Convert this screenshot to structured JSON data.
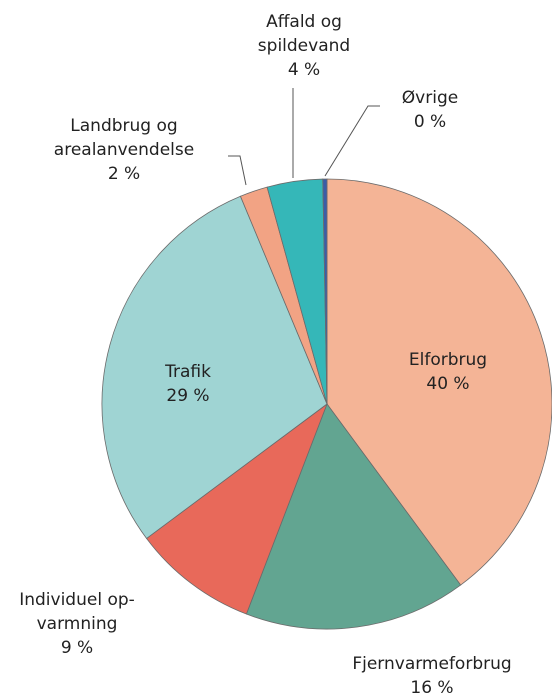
{
  "chart_data": {
    "type": "pie",
    "categories": [
      [
        "Elforbrug"
      ],
      [
        "Fjernvarmeforbrug"
      ],
      [
        "Individuel op-",
        "varmning"
      ],
      [
        "Trafik"
      ],
      [
        "Landbrug og",
        "arealanvendelse"
      ],
      [
        "Affald og",
        "spildevand"
      ],
      [
        "Øvrige"
      ]
    ],
    "values": [
      40,
      16,
      9,
      29,
      2,
      4,
      0.3
    ],
    "value_labels": [
      "40 %",
      "16 %",
      "9 %",
      "29 %",
      "2 %",
      "4 %",
      "0 %"
    ],
    "colors": [
      "#f4b496",
      "#62a591",
      "#e8695a",
      "#9fd4d3",
      "#f2a384",
      "#35b7b8",
      "#3a5da8"
    ]
  }
}
